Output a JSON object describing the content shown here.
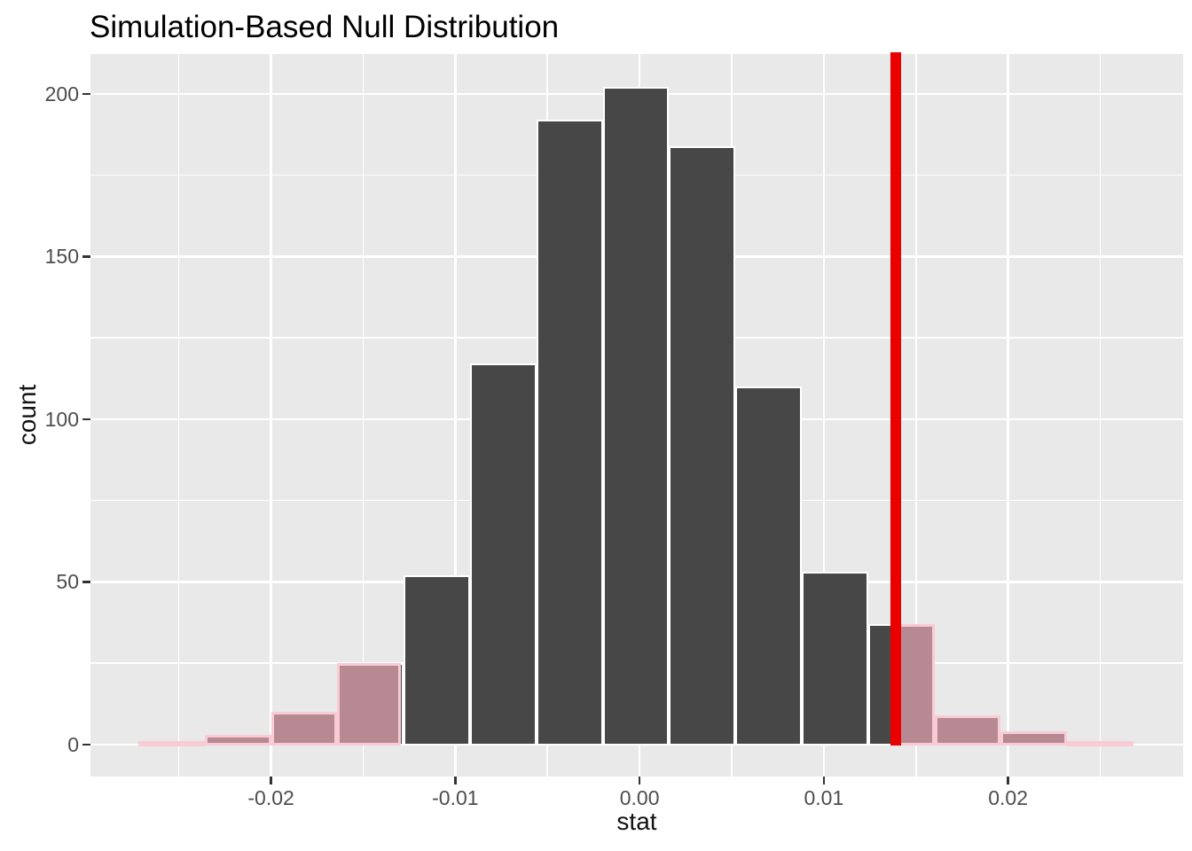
{
  "title": "Simulation-Based Null Distribution",
  "chart_data": {
    "type": "histogram",
    "title": "Simulation-Based Null Distribution",
    "xlabel": "stat",
    "ylabel": "count",
    "x_tick_values": [
      -0.02,
      -0.01,
      0,
      0.01,
      0.02
    ],
    "x_tick_labels": [
      "-0.02",
      "-0.01",
      "0.00",
      "0.01",
      "0.02"
    ],
    "y_tick_values": [
      0,
      50,
      100,
      150,
      200
    ],
    "y_tick_labels": [
      "0",
      "50",
      "100",
      "150",
      "200"
    ],
    "x_minor_gridlines": [
      -0.025,
      -0.015,
      -0.005,
      0.005,
      0.015,
      0.025
    ],
    "y_minor_gridlines": [
      25,
      75,
      125,
      175
    ],
    "xlim": [
      -0.0298,
      0.0295
    ],
    "ylim": [
      -9.8,
      212.2
    ],
    "grid": "on",
    "legend": "none",
    "bin_width": 0.0036,
    "bins": [
      {
        "x0": -0.0272,
        "x1": -0.0236,
        "count": 1
      },
      {
        "x0": -0.0236,
        "x1": -0.02,
        "count": 3
      },
      {
        "x0": -0.02,
        "x1": -0.0164,
        "count": 10
      },
      {
        "x0": -0.0164,
        "x1": -0.0128,
        "count": 25
      },
      {
        "x0": -0.0128,
        "x1": -0.0092,
        "count": 52
      },
      {
        "x0": -0.0092,
        "x1": -0.0056,
        "count": 117
      },
      {
        "x0": -0.0056,
        "x1": -0.002,
        "count": 192
      },
      {
        "x0": -0.002,
        "x1": 0.0016,
        "count": 202
      },
      {
        "x0": 0.0016,
        "x1": 0.0052,
        "count": 184
      },
      {
        "x0": 0.0052,
        "x1": 0.0088,
        "count": 110
      },
      {
        "x0": 0.0088,
        "x1": 0.0124,
        "count": 53
      },
      {
        "x0": 0.0124,
        "x1": 0.016,
        "count": 37
      },
      {
        "x0": 0.016,
        "x1": 0.0196,
        "count": 9
      },
      {
        "x0": 0.0196,
        "x1": 0.0232,
        "count": 4
      },
      {
        "x0": 0.0232,
        "x1": 0.0268,
        "count": 1
      }
    ],
    "observed_stat": 0.0139,
    "shaded_regions": [
      {
        "from": -0.0272,
        "to": -0.01295
      },
      {
        "from": 0.0139,
        "to": 0.0268
      }
    ],
    "colors": {
      "bar_fill": "#474747",
      "bar_stroke": "#FFFFFF",
      "shade_fill": "#B78A93",
      "shade_stroke": "#F8CBD5",
      "observed_line": "#EA0000",
      "panel_background": "#E9E9E9",
      "gridline": "#FFFFFF",
      "tick_mark": "#333333",
      "tick_label": "#4D4D4D",
      "title_text": "#000000",
      "axis_title_text": "#111111"
    }
  }
}
